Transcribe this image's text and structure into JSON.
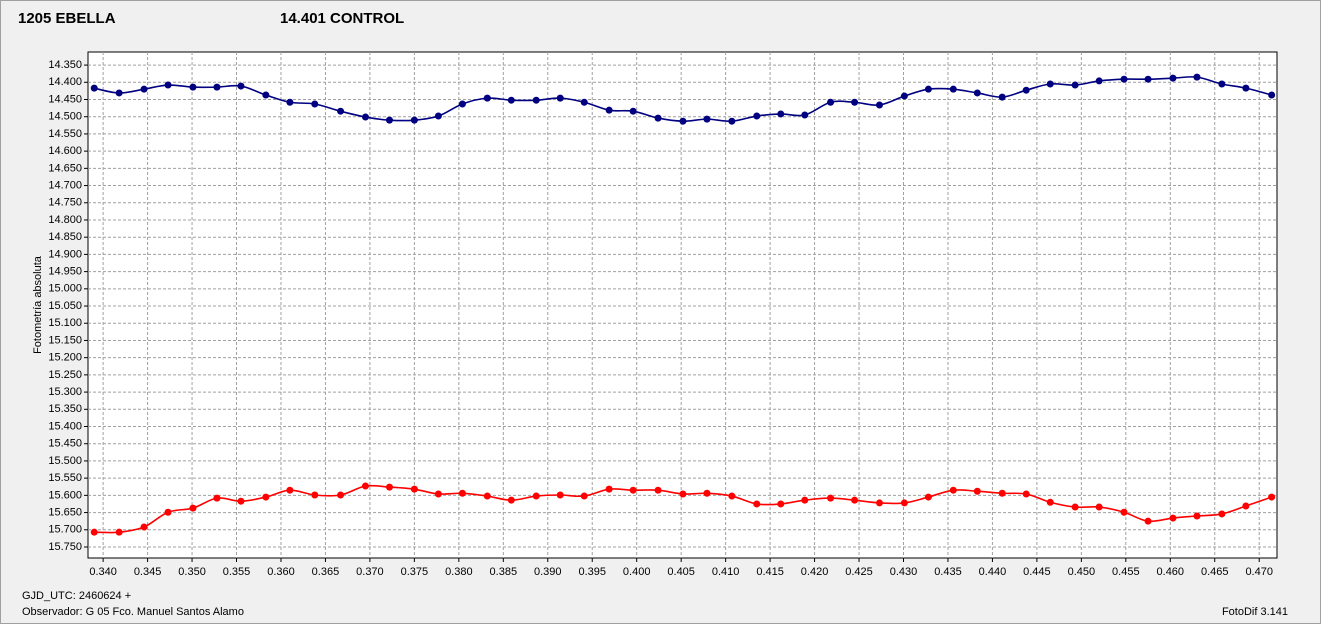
{
  "chart_data": {
    "type": "line",
    "x_label": "GJD_UTC: 2460624 +",
    "y_label": "Fotometría absoluta",
    "annotations": [
      "Observador: G 05  Fco. Manuel Santos Alamo",
      "FotoDif 3.141"
    ],
    "grid": true,
    "xlim": [
      0.3383,
      0.472
    ],
    "ylim": [
      15.782,
      14.312
    ],
    "x": [
      0.339,
      0.3418,
      0.3446,
      0.3473,
      0.3501,
      0.3528,
      0.3555,
      0.3583,
      0.361,
      0.3638,
      0.3667,
      0.3695,
      0.3722,
      0.375,
      0.3777,
      0.3804,
      0.3832,
      0.3859,
      0.3887,
      0.3914,
      0.3941,
      0.3969,
      0.3996,
      0.4024,
      0.4052,
      0.4079,
      0.4107,
      0.4135,
      0.4162,
      0.4189,
      0.4218,
      0.4245,
      0.4273,
      0.4301,
      0.4328,
      0.4356,
      0.4383,
      0.4411,
      0.4438,
      0.4465,
      0.4493,
      0.452,
      0.4548,
      0.4575,
      0.4603,
      0.463,
      0.4658,
      0.4685,
      0.4714
    ],
    "series": [
      {
        "name": "1205 EBELLA",
        "color": "#ff0000",
        "values": [
          15.707,
          15.707,
          15.692,
          15.649,
          15.637,
          15.608,
          15.617,
          15.605,
          15.585,
          15.599,
          15.599,
          15.573,
          15.576,
          15.582,
          15.596,
          15.594,
          15.602,
          15.614,
          15.602,
          15.599,
          15.602,
          15.582,
          15.585,
          15.585,
          15.596,
          15.594,
          15.602,
          15.625,
          15.625,
          15.614,
          15.608,
          15.614,
          15.622,
          15.622,
          15.605,
          15.585,
          15.588,
          15.594,
          15.596,
          15.62,
          15.634,
          15.634,
          15.649,
          15.675,
          15.666,
          15.66,
          15.654,
          15.631,
          15.605
        ]
      },
      {
        "name": "14.401 CONTROL",
        "color": "#000080",
        "values": [
          14.417,
          14.431,
          14.42,
          14.408,
          14.414,
          14.414,
          14.411,
          14.437,
          14.458,
          14.463,
          14.484,
          14.501,
          14.51,
          14.51,
          14.498,
          14.463,
          14.446,
          14.452,
          14.452,
          14.446,
          14.458,
          14.481,
          14.484,
          14.504,
          14.513,
          14.507,
          14.513,
          14.498,
          14.492,
          14.495,
          14.458,
          14.458,
          14.466,
          14.44,
          14.42,
          14.42,
          14.431,
          14.443,
          14.423,
          14.405,
          14.408,
          14.396,
          14.391,
          14.391,
          14.388,
          14.385,
          14.405,
          14.417,
          14.437
        ]
      }
    ],
    "xticks": [
      {
        "value": 0.34,
        "label": "0.340"
      },
      {
        "value": 0.345,
        "label": "0.345"
      },
      {
        "value": 0.35,
        "label": "0.350"
      },
      {
        "value": 0.355,
        "label": "0.355"
      },
      {
        "value": 0.36,
        "label": "0.360"
      },
      {
        "value": 0.365,
        "label": "0.365"
      },
      {
        "value": 0.37,
        "label": "0.370"
      },
      {
        "value": 0.375,
        "label": "0.375"
      },
      {
        "value": 0.38,
        "label": "0.380"
      },
      {
        "value": 0.385,
        "label": "0.385"
      },
      {
        "value": 0.39,
        "label": "0.390"
      },
      {
        "value": 0.395,
        "label": "0.395"
      },
      {
        "value": 0.4,
        "label": "0.400"
      },
      {
        "value": 0.405,
        "label": "0.405"
      },
      {
        "value": 0.41,
        "label": "0.410"
      },
      {
        "value": 0.415,
        "label": "0.415"
      },
      {
        "value": 0.42,
        "label": "0.420"
      },
      {
        "value": 0.425,
        "label": "0.425"
      },
      {
        "value": 0.43,
        "label": "0.430"
      },
      {
        "value": 0.435,
        "label": "0.435"
      },
      {
        "value": 0.44,
        "label": "0.440"
      },
      {
        "value": 0.445,
        "label": "0.445"
      },
      {
        "value": 0.45,
        "label": "0.450"
      },
      {
        "value": 0.455,
        "label": "0.455"
      },
      {
        "value": 0.46,
        "label": "0.460"
      },
      {
        "value": 0.465,
        "label": "0.465"
      },
      {
        "value": 0.47,
        "label": "0.470"
      }
    ],
    "yticks": [
      {
        "value": 14.35,
        "label": "14.350"
      },
      {
        "value": 14.4,
        "label": "14.400"
      },
      {
        "value": 14.45,
        "label": "14.450"
      },
      {
        "value": 14.5,
        "label": "14.500"
      },
      {
        "value": 14.55,
        "label": "14.550"
      },
      {
        "value": 14.6,
        "label": "14.600"
      },
      {
        "value": 14.65,
        "label": "14.650"
      },
      {
        "value": 14.7,
        "label": "14.700"
      },
      {
        "value": 14.75,
        "label": "14.750"
      },
      {
        "value": 14.8,
        "label": "14.800"
      },
      {
        "value": 14.85,
        "label": "14.850"
      },
      {
        "value": 14.9,
        "label": "14.900"
      },
      {
        "value": 14.95,
        "label": "14.950"
      },
      {
        "value": 15,
        "label": "15.000"
      },
      {
        "value": 15.05,
        "label": "15.050"
      },
      {
        "value": 15.1,
        "label": "15.100"
      },
      {
        "value": 15.15,
        "label": "15.150"
      },
      {
        "value": 15.2,
        "label": "15.200"
      },
      {
        "value": 15.25,
        "label": "15.250"
      },
      {
        "value": 15.3,
        "label": "15.300"
      },
      {
        "value": 15.35,
        "label": "15.350"
      },
      {
        "value": 15.4,
        "label": "15.400"
      },
      {
        "value": 15.45,
        "label": "15.450"
      },
      {
        "value": 15.5,
        "label": "15.500"
      },
      {
        "value": 15.55,
        "label": "15.550"
      },
      {
        "value": 15.6,
        "label": "15.600"
      },
      {
        "value": 15.65,
        "label": "15.650"
      },
      {
        "value": 15.7,
        "label": "15.700"
      },
      {
        "value": 15.75,
        "label": "15.750"
      }
    ]
  }
}
